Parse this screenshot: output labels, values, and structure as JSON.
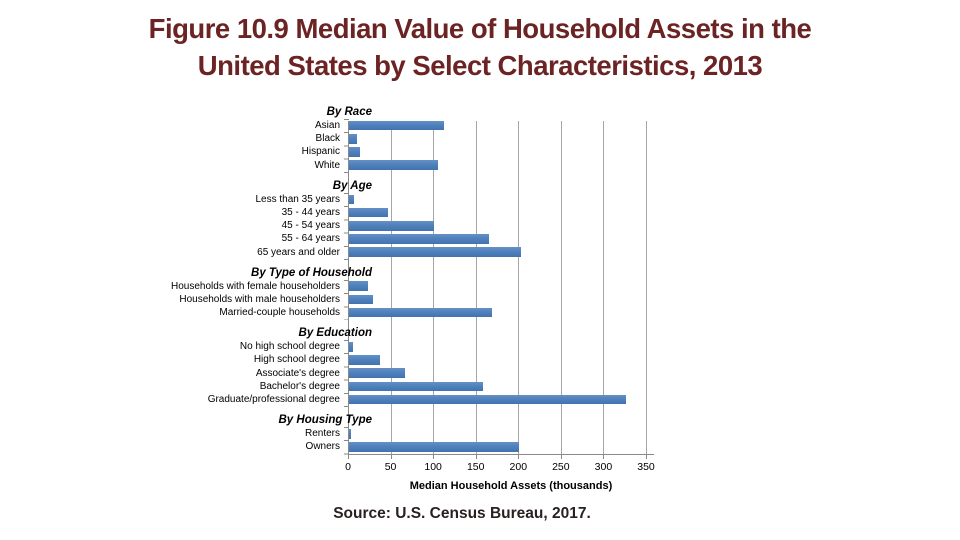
{
  "title_lines": [
    "Figure 10.9 Median Value of Household Assets in the",
    "United States by Select Characteristics, 2013"
  ],
  "source": "Source: U.S. Census Bureau, 2017.",
  "colors": {
    "title_text": "#6b2423",
    "bar": "#4f81bd",
    "gridline": "#a6a6a6",
    "axis": "#898989"
  },
  "chart_data": {
    "type": "bar",
    "orientation": "horizontal",
    "title": "",
    "xlabel": "Median Household Assets (thousands)",
    "ylabel": "",
    "xlim": [
      0,
      350
    ],
    "xticks": [
      0,
      50,
      100,
      150,
      200,
      250,
      300,
      350
    ],
    "grid": true,
    "legend": false,
    "groups": [
      {
        "header": "By Race",
        "categories": [
          "Asian",
          "Black",
          "Hispanic",
          "White"
        ],
        "values": [
          112,
          9,
          13,
          104
        ]
      },
      {
        "header": "By Age",
        "categories": [
          "Less than 35 years",
          "35 - 44 years",
          "45 - 54 years",
          "55 - 64 years",
          "65 years and older"
        ],
        "values": [
          6,
          46,
          100,
          164,
          202
        ]
      },
      {
        "header": "By Type of Household",
        "categories": [
          "Households with female householders",
          "Households with male householders",
          "Married-couple households"
        ],
        "values": [
          22,
          28,
          168
        ]
      },
      {
        "header": "By Education",
        "categories": [
          "No high school degree",
          "High school degree",
          "Associate's degree",
          "Bachelor's degree",
          "Graduate/professional degree"
        ],
        "values": [
          5,
          36,
          66,
          157,
          325
        ]
      },
      {
        "header": "By Housing Type",
        "categories": [
          "Renters",
          "Owners"
        ],
        "values": [
          2,
          200
        ]
      }
    ]
  }
}
